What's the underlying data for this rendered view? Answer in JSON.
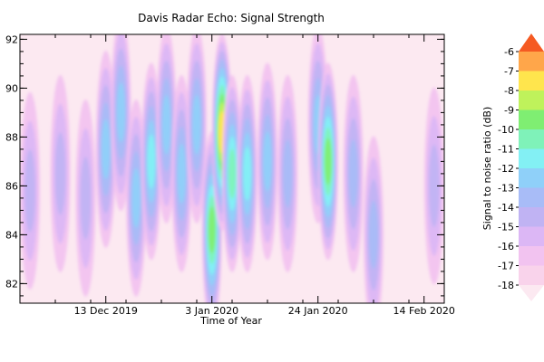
{
  "chart_data": {
    "type": "heatmap",
    "title": "Davis Radar Echo: Signal Strength",
    "xlabel": "Time of Year",
    "ylabel": "",
    "x_ticks": [
      {
        "label": "13 Dec 2019",
        "date": "2019-12-13"
      },
      {
        "label": "3 Jan 2020",
        "date": "2020-01-03"
      },
      {
        "label": "24 Jan 2020",
        "date": "2020-01-24"
      },
      {
        "label": "14 Feb 2020",
        "date": "2020-02-14"
      }
    ],
    "xlim": [
      "2019-11-26",
      "2020-02-18"
    ],
    "y_ticks": [
      82,
      84,
      86,
      88,
      90,
      92
    ],
    "ylim": [
      81.2,
      92.2
    ],
    "colorbar": {
      "label": "Signal to noise ratio (dB)",
      "levels": [
        -18,
        -17,
        -16,
        -15,
        -14,
        -13,
        -12,
        -11,
        -10,
        -9,
        -8,
        -7,
        -6
      ],
      "colors": [
        "#fce9f1",
        "#f9d3eb",
        "#f2c3f0",
        "#dcb7f5",
        "#c0b3f3",
        "#a8bcf7",
        "#8fd0f9",
        "#83f0f4",
        "#7ff2b9",
        "#7fee72",
        "#bff25b",
        "#ffe54d",
        "#ffa64a",
        "#f55a22"
      ],
      "extend": "both"
    },
    "hotspots": [
      {
        "date": "2019-11-28",
        "height": 85.8,
        "snr": -14.5
      },
      {
        "date": "2019-12-04",
        "height": 86.5,
        "snr": -14.5
      },
      {
        "date": "2019-12-09",
        "height": 85.5,
        "snr": -14.5
      },
      {
        "date": "2019-12-13",
        "height": 87.5,
        "snr": -12.5
      },
      {
        "date": "2019-12-16",
        "height": 89.0,
        "snr": -12.0
      },
      {
        "date": "2019-12-19",
        "height": 85.5,
        "snr": -12.5
      },
      {
        "date": "2019-12-22",
        "height": 87.0,
        "snr": -11.5
      },
      {
        "date": "2019-12-25",
        "height": 88.5,
        "snr": -12.0
      },
      {
        "date": "2019-12-28",
        "height": 86.5,
        "snr": -12.5
      },
      {
        "date": "2019-12-31",
        "height": 88.5,
        "snr": -12.5
      },
      {
        "date": "2020-01-03",
        "height": 84.2,
        "snr": -9.5
      },
      {
        "date": "2020-01-05",
        "height": 88.2,
        "snr": -7.0
      },
      {
        "date": "2020-01-07",
        "height": 86.5,
        "snr": -10.5
      },
      {
        "date": "2020-01-10",
        "height": 86.5,
        "snr": -11.5
      },
      {
        "date": "2020-01-14",
        "height": 87.0,
        "snr": -12.5
      },
      {
        "date": "2020-01-18",
        "height": 86.5,
        "snr": -13.0
      },
      {
        "date": "2020-01-24",
        "height": 88.5,
        "snr": -12.0
      },
      {
        "date": "2020-01-26",
        "height": 87.0,
        "snr": -9.5
      },
      {
        "date": "2020-01-31",
        "height": 86.5,
        "snr": -13.0
      },
      {
        "date": "2020-02-04",
        "height": 84.0,
        "snr": -13.5
      },
      {
        "date": "2020-02-16",
        "height": 86.0,
        "snr": -14.0
      }
    ]
  }
}
